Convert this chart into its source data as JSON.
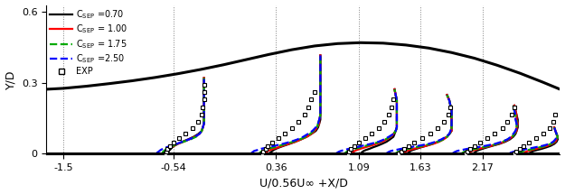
{
  "xlabel": "U/0.56U∞ +X/D",
  "ylabel": "Y/D",
  "xlim": [
    -1.65,
    2.85
  ],
  "ylim": [
    -0.005,
    0.63
  ],
  "xticks": [
    -1.5,
    -0.54,
    0.36,
    1.09,
    1.63,
    2.17
  ],
  "yticks": [
    0,
    0.3,
    0.6
  ],
  "ytick_labels": [
    "0",
    "0.3",
    "0.6"
  ],
  "vline_positions": [
    -1.5,
    -0.54,
    0.36,
    1.09,
    1.63,
    2.17
  ],
  "wall_x": [
    -1.65,
    -1.5,
    -1.3,
    -1.1,
    -0.9,
    -0.7,
    -0.5,
    -0.3,
    -0.1,
    0.1,
    0.3,
    0.5,
    0.7,
    0.9,
    1.1,
    1.3,
    1.5,
    1.7,
    1.9,
    2.1,
    2.3,
    2.5,
    2.7,
    2.85
  ],
  "wall_y": [
    0.272,
    0.276,
    0.285,
    0.296,
    0.308,
    0.322,
    0.338,
    0.356,
    0.376,
    0.398,
    0.42,
    0.44,
    0.456,
    0.466,
    0.47,
    0.468,
    0.46,
    0.447,
    0.428,
    0.404,
    0.374,
    0.34,
    0.302,
    0.272
  ],
  "stations": [
    -0.54,
    0.36,
    1.09,
    1.63,
    2.17,
    2.55
  ],
  "profile_y_fine": [
    0.0,
    0.003,
    0.006,
    0.01,
    0.014,
    0.019,
    0.025,
    0.032,
    0.04,
    0.049,
    0.059,
    0.07,
    0.082,
    0.095,
    0.11,
    0.126,
    0.143,
    0.162,
    0.182,
    0.203,
    0.225,
    0.248,
    0.272,
    0.296,
    0.32,
    0.344,
    0.368,
    0.392,
    0.416,
    0.44,
    0.46
  ],
  "c070_profiles": [
    [
      -0.04,
      -0.04,
      -0.04,
      -0.04,
      -0.03,
      -0.02,
      -0.01,
      0.01,
      0.04,
      0.08,
      0.13,
      0.18,
      0.22,
      0.25,
      0.26,
      0.27,
      0.27,
      0.27,
      0.27,
      0.27,
      0.27,
      0.27,
      0.27,
      0.27,
      0.27,
      null,
      null,
      null,
      null,
      null,
      null
    ],
    [
      -0.05,
      -0.05,
      -0.04,
      -0.03,
      -0.02,
      0.0,
      0.03,
      0.07,
      0.12,
      0.17,
      0.22,
      0.27,
      0.31,
      0.35,
      0.37,
      0.38,
      0.39,
      0.39,
      0.39,
      0.39,
      0.39,
      0.39,
      0.39,
      0.39,
      0.39,
      0.39,
      0.39,
      0.39,
      0.39,
      null,
      null
    ],
    [
      0.02,
      0.02,
      0.03,
      0.04,
      0.06,
      0.09,
      0.12,
      0.16,
      0.2,
      0.24,
      0.27,
      0.3,
      0.31,
      0.32,
      0.33,
      0.33,
      0.33,
      0.33,
      0.33,
      0.33,
      0.33,
      0.32,
      0.31,
      null,
      null,
      null,
      null,
      null,
      null,
      null,
      null
    ],
    [
      -0.11,
      -0.11,
      -0.1,
      -0.09,
      -0.07,
      -0.04,
      0.0,
      0.05,
      0.1,
      0.15,
      0.19,
      0.23,
      0.25,
      0.27,
      0.27,
      0.27,
      0.27,
      0.27,
      0.27,
      0.26,
      0.25,
      0.23,
      null,
      null,
      null,
      null,
      null,
      null,
      null,
      null,
      null
    ],
    [
      -0.07,
      -0.07,
      -0.06,
      -0.05,
      -0.03,
      0.0,
      0.04,
      0.09,
      0.15,
      0.2,
      0.24,
      0.27,
      0.29,
      0.3,
      0.31,
      0.31,
      0.31,
      0.3,
      0.29,
      0.28,
      null,
      null,
      null,
      null,
      null,
      null,
      null,
      null,
      null,
      null,
      null
    ],
    [
      0.03,
      0.04,
      0.05,
      0.07,
      0.1,
      0.14,
      0.18,
      0.22,
      0.25,
      0.27,
      0.28,
      0.28,
      0.27,
      0.26,
      0.25,
      null,
      null,
      null,
      null,
      null,
      null,
      null,
      null,
      null,
      null,
      null,
      null,
      null,
      null,
      null,
      null
    ]
  ],
  "c100_profiles": [
    [
      -0.06,
      -0.06,
      -0.06,
      -0.06,
      -0.05,
      -0.04,
      -0.02,
      0.01,
      0.04,
      0.09,
      0.14,
      0.19,
      0.23,
      0.25,
      0.26,
      0.27,
      0.27,
      0.27,
      0.27,
      0.27,
      0.27,
      0.27,
      0.27,
      0.27,
      0.27,
      null,
      null,
      null,
      null,
      null,
      null
    ],
    [
      -0.09,
      -0.09,
      -0.08,
      -0.07,
      -0.05,
      -0.02,
      0.02,
      0.06,
      0.11,
      0.17,
      0.22,
      0.27,
      0.31,
      0.34,
      0.36,
      0.38,
      0.38,
      0.39,
      0.39,
      0.39,
      0.39,
      0.39,
      0.39,
      0.39,
      0.39,
      0.39,
      0.39,
      0.39,
      0.39,
      null,
      null
    ],
    [
      -0.06,
      -0.06,
      -0.05,
      -0.04,
      -0.02,
      0.01,
      0.05,
      0.1,
      0.15,
      0.2,
      0.24,
      0.28,
      0.3,
      0.32,
      0.33,
      0.33,
      0.33,
      0.33,
      0.33,
      0.33,
      0.33,
      0.32,
      0.31,
      null,
      null,
      null,
      null,
      null,
      null,
      null,
      null
    ],
    [
      -0.16,
      -0.15,
      -0.14,
      -0.12,
      -0.1,
      -0.06,
      -0.01,
      0.05,
      0.11,
      0.16,
      0.2,
      0.23,
      0.25,
      0.27,
      0.27,
      0.27,
      0.27,
      0.27,
      0.27,
      0.26,
      0.25,
      0.23,
      null,
      null,
      null,
      null,
      null,
      null,
      null,
      null,
      null
    ],
    [
      -0.12,
      -0.12,
      -0.11,
      -0.09,
      -0.07,
      -0.03,
      0.02,
      0.08,
      0.14,
      0.19,
      0.23,
      0.26,
      0.28,
      0.3,
      0.3,
      0.31,
      0.3,
      0.3,
      0.29,
      0.28,
      null,
      null,
      null,
      null,
      null,
      null,
      null,
      null,
      null,
      null,
      null
    ],
    [
      -0.02,
      -0.01,
      0.0,
      0.02,
      0.05,
      0.09,
      0.14,
      0.19,
      0.23,
      0.26,
      0.27,
      0.28,
      0.27,
      0.26,
      0.25,
      null,
      null,
      null,
      null,
      null,
      null,
      null,
      null,
      null,
      null,
      null,
      null,
      null,
      null,
      null,
      null
    ]
  ],
  "c175_profiles": [
    [
      -0.09,
      -0.09,
      -0.09,
      -0.08,
      -0.07,
      -0.06,
      -0.03,
      0.0,
      0.04,
      0.09,
      0.15,
      0.2,
      0.23,
      0.25,
      0.26,
      0.27,
      0.27,
      0.27,
      0.27,
      0.27,
      0.27,
      0.27,
      0.27,
      0.27,
      0.27,
      null,
      null,
      null,
      null,
      null,
      null
    ],
    [
      -0.14,
      -0.14,
      -0.13,
      -0.12,
      -0.1,
      -0.07,
      -0.02,
      0.03,
      0.09,
      0.15,
      0.21,
      0.26,
      0.3,
      0.33,
      0.36,
      0.37,
      0.38,
      0.39,
      0.39,
      0.39,
      0.39,
      0.39,
      0.39,
      0.39,
      0.39,
      0.39,
      0.39,
      0.39,
      0.39,
      null,
      null
    ],
    [
      -0.12,
      -0.12,
      -0.11,
      -0.1,
      -0.07,
      -0.04,
      0.01,
      0.06,
      0.12,
      0.18,
      0.23,
      0.27,
      0.3,
      0.32,
      0.33,
      0.33,
      0.33,
      0.33,
      0.33,
      0.33,
      0.33,
      0.32,
      0.31,
      null,
      null,
      null,
      null,
      null,
      null,
      null,
      null
    ],
    [
      -0.22,
      -0.21,
      -0.2,
      -0.18,
      -0.15,
      -0.11,
      -0.05,
      0.02,
      0.09,
      0.15,
      0.2,
      0.23,
      0.25,
      0.27,
      0.27,
      0.27,
      0.27,
      0.27,
      0.27,
      0.26,
      0.25,
      0.23,
      null,
      null,
      null,
      null,
      null,
      null,
      null,
      null,
      null
    ],
    [
      -0.18,
      -0.17,
      -0.16,
      -0.14,
      -0.11,
      -0.06,
      0.0,
      0.07,
      0.13,
      0.18,
      0.22,
      0.26,
      0.28,
      0.29,
      0.3,
      0.3,
      0.3,
      0.29,
      0.28,
      0.27,
      null,
      null,
      null,
      null,
      null,
      null,
      null,
      null,
      null,
      null,
      null
    ],
    [
      -0.07,
      -0.06,
      -0.04,
      -0.02,
      0.02,
      0.07,
      0.12,
      0.18,
      0.22,
      0.25,
      0.27,
      0.28,
      0.27,
      0.26,
      0.25,
      null,
      null,
      null,
      null,
      null,
      null,
      null,
      null,
      null,
      null,
      null,
      null,
      null,
      null,
      null,
      null
    ]
  ],
  "c250_profiles": [
    [
      -0.14,
      -0.14,
      -0.13,
      -0.12,
      -0.11,
      -0.09,
      -0.06,
      -0.02,
      0.03,
      0.08,
      0.14,
      0.19,
      0.23,
      0.25,
      0.26,
      0.27,
      0.27,
      0.27,
      0.27,
      0.27,
      0.27,
      0.27,
      0.27,
      0.27,
      0.27,
      null,
      null,
      null,
      null,
      null,
      null
    ],
    [
      -0.21,
      -0.21,
      -0.2,
      -0.19,
      -0.16,
      -0.13,
      -0.07,
      -0.01,
      0.06,
      0.13,
      0.19,
      0.24,
      0.28,
      0.32,
      0.35,
      0.37,
      0.38,
      0.39,
      0.39,
      0.39,
      0.39,
      0.39,
      0.39,
      0.39,
      0.39,
      0.39,
      0.39,
      0.39,
      0.39,
      null,
      null
    ],
    [
      -0.2,
      -0.19,
      -0.18,
      -0.16,
      -0.13,
      -0.09,
      -0.03,
      0.03,
      0.1,
      0.17,
      0.22,
      0.26,
      0.3,
      0.32,
      0.33,
      0.33,
      0.33,
      0.33,
      0.33,
      0.33,
      0.33,
      0.32,
      0.31,
      null,
      null,
      null,
      null,
      null,
      null,
      null,
      null
    ],
    [
      -0.3,
      -0.29,
      -0.28,
      -0.26,
      -0.22,
      -0.17,
      -0.1,
      -0.02,
      0.07,
      0.13,
      0.18,
      0.22,
      0.25,
      0.26,
      0.27,
      0.27,
      0.27,
      0.27,
      0.27,
      0.26,
      0.25,
      0.23,
      null,
      null,
      null,
      null,
      null,
      null,
      null,
      null,
      null
    ],
    [
      -0.26,
      -0.25,
      -0.24,
      -0.22,
      -0.18,
      -0.13,
      -0.05,
      0.03,
      0.11,
      0.17,
      0.22,
      0.25,
      0.27,
      0.29,
      0.3,
      0.3,
      0.29,
      0.29,
      0.28,
      0.27,
      null,
      null,
      null,
      null,
      null,
      null,
      null,
      null,
      null,
      null,
      null
    ],
    [
      -0.14,
      -0.13,
      -0.11,
      -0.08,
      -0.04,
      0.02,
      0.08,
      0.15,
      0.21,
      0.24,
      0.26,
      0.27,
      0.27,
      0.26,
      0.25,
      null,
      null,
      null,
      null,
      null,
      null,
      null,
      null,
      null,
      null,
      null,
      null,
      null,
      null,
      null,
      null
    ]
  ],
  "exp_y": [
    0.0,
    0.008,
    0.018,
    0.03,
    0.045,
    0.063,
    0.084,
    0.108,
    0.135,
    0.165,
    0.196,
    0.228,
    0.26,
    0.292
  ],
  "exp_profiles": [
    [
      -0.07,
      -0.06,
      -0.05,
      -0.03,
      0.0,
      0.05,
      0.11,
      0.17,
      0.22,
      0.25,
      0.26,
      0.27,
      0.27,
      0.27
    ],
    [
      -0.12,
      -0.11,
      -0.09,
      -0.07,
      -0.03,
      0.02,
      0.08,
      0.14,
      0.2,
      0.25,
      0.28,
      0.31,
      0.34,
      null
    ],
    [
      -0.1,
      -0.09,
      -0.07,
      -0.04,
      0.0,
      0.05,
      0.11,
      0.17,
      0.22,
      0.26,
      0.28,
      0.3,
      null,
      null
    ],
    [
      -0.19,
      -0.17,
      -0.15,
      -0.11,
      -0.06,
      0.01,
      0.08,
      0.15,
      0.2,
      0.24,
      0.26,
      null,
      null,
      null
    ],
    [
      -0.15,
      -0.13,
      -0.11,
      -0.07,
      -0.02,
      0.04,
      0.11,
      0.18,
      0.22,
      0.26,
      0.28,
      null,
      null,
      null
    ],
    [
      -0.1,
      -0.08,
      -0.05,
      -0.02,
      0.03,
      0.09,
      0.15,
      0.21,
      0.24,
      0.26,
      null,
      null,
      null,
      null
    ]
  ]
}
